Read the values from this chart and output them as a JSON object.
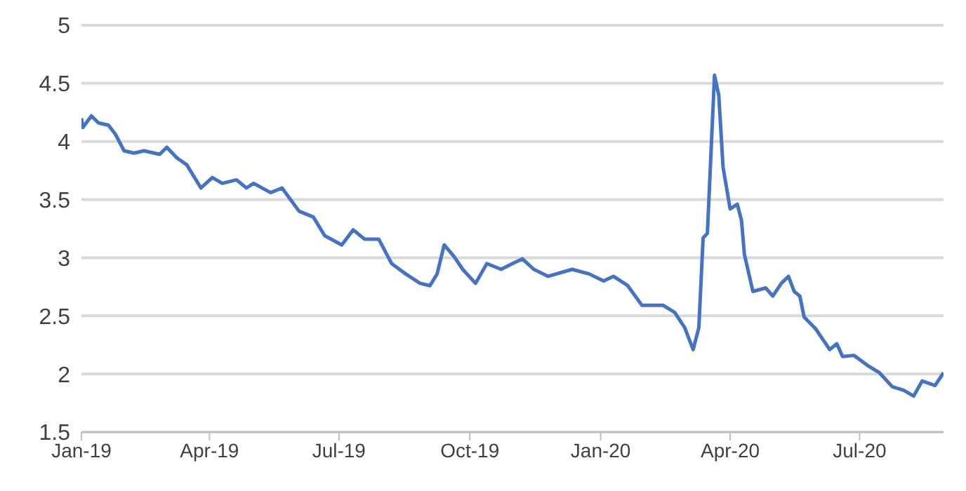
{
  "chart_data": {
    "type": "line",
    "x": [
      "2019-01-01",
      "2019-01-02",
      "2019-01-08",
      "2019-01-13",
      "2019-01-20",
      "2019-01-25",
      "2019-01-31",
      "2019-02-07",
      "2019-02-14",
      "2019-02-25",
      "2019-03-02",
      "2019-03-09",
      "2019-03-16",
      "2019-03-26",
      "2019-04-03",
      "2019-04-10",
      "2019-04-20",
      "2019-04-27",
      "2019-05-02",
      "2019-05-14",
      "2019-05-22",
      "2019-06-03",
      "2019-06-13",
      "2019-06-21",
      "2019-07-03",
      "2019-07-11",
      "2019-07-19",
      "2019-07-29",
      "2019-08-07",
      "2019-08-17",
      "2019-08-27",
      "2019-09-03",
      "2019-09-08",
      "2019-09-13",
      "2019-09-20",
      "2019-09-26",
      "2019-10-05",
      "2019-10-13",
      "2019-10-23",
      "2019-10-31",
      "2019-11-07",
      "2019-11-15",
      "2019-11-25",
      "2019-12-12",
      "2019-12-24",
      "2020-01-03",
      "2020-01-10",
      "2020-01-20",
      "2020-01-30",
      "2020-02-14",
      "2020-02-22",
      "2020-02-29",
      "2020-03-06",
      "2020-03-10",
      "2020-03-13",
      "2020-03-16",
      "2020-03-21",
      "2020-03-24",
      "2020-03-27",
      "2020-04-01",
      "2020-04-06",
      "2020-04-09",
      "2020-04-11",
      "2020-04-17",
      "2020-04-26",
      "2020-05-01",
      "2020-05-07",
      "2020-05-12",
      "2020-05-16",
      "2020-05-20",
      "2020-05-23",
      "2020-05-31",
      "2020-06-10",
      "2020-06-15",
      "2020-06-19",
      "2020-06-27",
      "2020-07-07",
      "2020-07-15",
      "2020-07-24",
      "2020-08-01",
      "2020-08-08",
      "2020-08-14",
      "2020-08-23",
      "2020-08-29"
    ],
    "series": [
      {
        "color": "#4472c4",
        "values": [
          4.2,
          4.12,
          4.22,
          4.16,
          4.14,
          4.06,
          3.92,
          3.9,
          3.92,
          3.89,
          3.95,
          3.86,
          3.8,
          3.6,
          3.69,
          3.64,
          3.67,
          3.6,
          3.64,
          3.56,
          3.6,
          3.4,
          3.35,
          3.19,
          3.11,
          3.24,
          3.16,
          3.16,
          2.95,
          2.86,
          2.78,
          2.76,
          2.86,
          3.11,
          3.01,
          2.9,
          2.78,
          2.95,
          2.9,
          2.95,
          2.99,
          2.9,
          2.84,
          2.9,
          2.86,
          2.8,
          2.84,
          2.76,
          2.59,
          2.59,
          2.53,
          2.4,
          2.21,
          2.4,
          3.17,
          3.21,
          4.57,
          4.4,
          3.78,
          3.42,
          3.46,
          3.32,
          3.03,
          2.71,
          2.74,
          2.67,
          2.78,
          2.84,
          2.71,
          2.67,
          2.49,
          2.39,
          2.21,
          2.26,
          2.15,
          2.16,
          2.07,
          2.01,
          1.89,
          1.86,
          1.81,
          1.94,
          1.9,
          2.01
        ]
      }
    ],
    "xlim": [
      "2019-01-01",
      "2020-08-29"
    ],
    "xticks": [
      {
        "value": "2019-01-01",
        "label": "Jan-19"
      },
      {
        "value": "2019-04-01",
        "label": "Apr-19"
      },
      {
        "value": "2019-07-01",
        "label": "Jul-19"
      },
      {
        "value": "2019-10-01",
        "label": "Oct-19"
      },
      {
        "value": "2020-01-01",
        "label": "Jan-20"
      },
      {
        "value": "2020-04-01",
        "label": "Apr-20"
      },
      {
        "value": "2020-07-01",
        "label": "Jul-20"
      }
    ],
    "ylim": [
      1.5,
      5
    ],
    "yticks": [
      1.5,
      2,
      2.5,
      3,
      3.5,
      4,
      4.5,
      5
    ],
    "grid": "y",
    "legend": false,
    "marker": "none",
    "line_style": "solid"
  }
}
